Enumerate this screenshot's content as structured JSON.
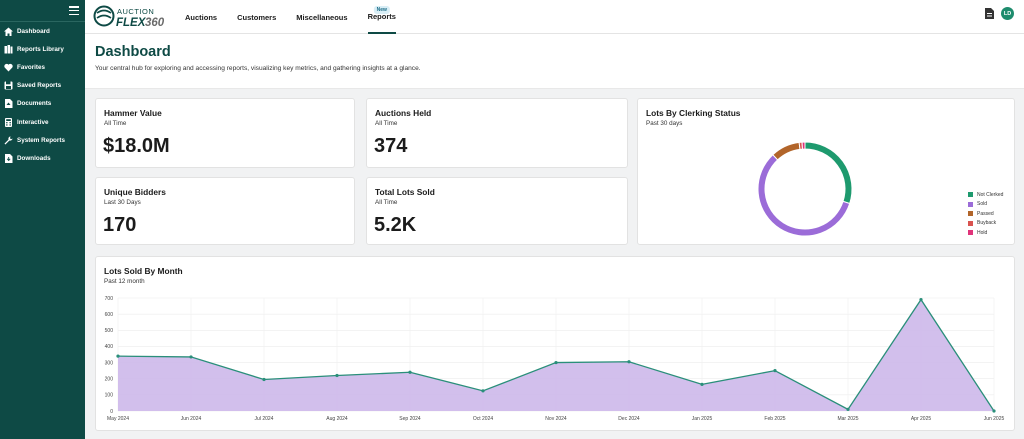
{
  "app": {
    "logo_text": "AUCTION FLEX360"
  },
  "sidebar": {
    "items": [
      {
        "label": "Dashboard",
        "icon": "home-icon"
      },
      {
        "label": "Reports Library",
        "icon": "books-icon"
      },
      {
        "label": "Favorites",
        "icon": "heart-icon"
      },
      {
        "label": "Saved Reports",
        "icon": "save-icon"
      },
      {
        "label": "Documents",
        "icon": "document-icon"
      },
      {
        "label": "Interactive",
        "icon": "calculator-icon"
      },
      {
        "label": "System Reports",
        "icon": "wrench-icon"
      },
      {
        "label": "Downloads",
        "icon": "download-icon"
      }
    ]
  },
  "topnav": {
    "tabs": [
      {
        "label": "Auctions"
      },
      {
        "label": "Customers"
      },
      {
        "label": "Miscellaneous"
      },
      {
        "label": "Reports",
        "badge": "New"
      }
    ],
    "avatar_initials": "LD"
  },
  "header": {
    "title": "Dashboard",
    "subtitle": "Your central hub for exploring and accessing reports, visualizing key metrics, and gathering insights at a glance."
  },
  "kpis": [
    {
      "title": "Hammer Value",
      "period": "All Time",
      "value": "$18.0M"
    },
    {
      "title": "Auctions Held",
      "period": "All Time",
      "value": "374"
    },
    {
      "title": "Unique Bidders",
      "period": "Last 30 Days",
      "value": "170"
    },
    {
      "title": "Total Lots Sold",
      "period": "All Time",
      "value": "5.2K"
    }
  ],
  "clerking": {
    "title": "Lots By Clerking Status",
    "period": "Past 30 days"
  },
  "monthly": {
    "title": "Lots Sold By Month",
    "period": "Past 12 month"
  },
  "colors": {
    "brand": "#0e4a45",
    "line": "#2a8f7a",
    "area": "#cdb8ea"
  },
  "chart_data": [
    {
      "type": "pie",
      "categories": [
        "Not Clerked",
        "Sold",
        "Passed",
        "Buyback",
        "Hold"
      ],
      "values": [
        30,
        58,
        10,
        1,
        1
      ],
      "colors": [
        "#1e9a6e",
        "#9b6cd8",
        "#b2652a",
        "#d9534f",
        "#e0347a"
      ],
      "legend": "right"
    },
    {
      "type": "area",
      "categories": [
        "May 2024",
        "Jun 2024",
        "Jul 2024",
        "Aug 2024",
        "Sep 2024",
        "Oct 2024",
        "Nov 2024",
        "Dec 2024",
        "Jan 2025",
        "Feb 2025",
        "Mar 2025",
        "Apr 2025",
        "Jun 2025"
      ],
      "values": [
        340,
        335,
        195,
        220,
        240,
        125,
        300,
        305,
        165,
        250,
        10,
        690,
        0
      ],
      "yticks": [
        0,
        100,
        200,
        300,
        400,
        500,
        600,
        700
      ],
      "ylim": [
        0,
        700
      ],
      "grid": true
    }
  ]
}
